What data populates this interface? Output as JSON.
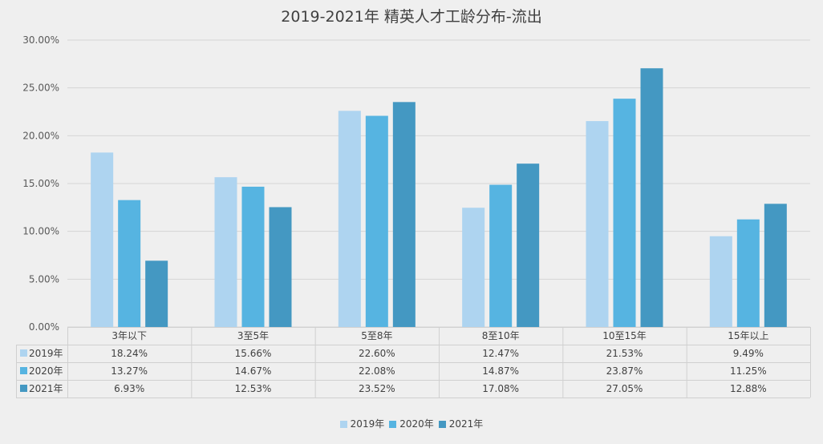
{
  "chart_data": {
    "type": "bar",
    "title": "2019-2021年 精英人才工龄分布-流出",
    "categories": [
      "3年以下",
      "3至5年",
      "5至8年",
      "8至10年",
      "10至15年",
      "15年以上"
    ],
    "series": [
      {
        "name": "2019年",
        "color": "#aed4f0",
        "values": [
          18.24,
          15.66,
          22.6,
          12.47,
          21.53,
          9.49
        ],
        "labels": [
          "18.24%",
          "15.66%",
          "22.60%",
          "12.47%",
          "21.53%",
          "9.49%"
        ]
      },
      {
        "name": "2020年",
        "color": "#56b4e1",
        "values": [
          13.27,
          14.67,
          22.08,
          14.87,
          23.87,
          11.25
        ],
        "labels": [
          "13.27%",
          "14.67%",
          "22.08%",
          "14.87%",
          "23.87%",
          "11.25%"
        ]
      },
      {
        "name": "2021年",
        "color": "#4498c2",
        "values": [
          6.93,
          12.53,
          23.52,
          17.08,
          27.05,
          12.88
        ],
        "labels": [
          "6.93%",
          "12.53%",
          "23.52%",
          "17.08%",
          "27.05%",
          "12.88%"
        ]
      }
    ],
    "ylim": [
      0,
      30
    ],
    "yticks": [
      "0.00%",
      "5.00%",
      "10.00%",
      "15.00%",
      "20.00%",
      "25.00%",
      "30.00%"
    ],
    "grid": true,
    "legend_position": "bottom",
    "data_table": true
  }
}
